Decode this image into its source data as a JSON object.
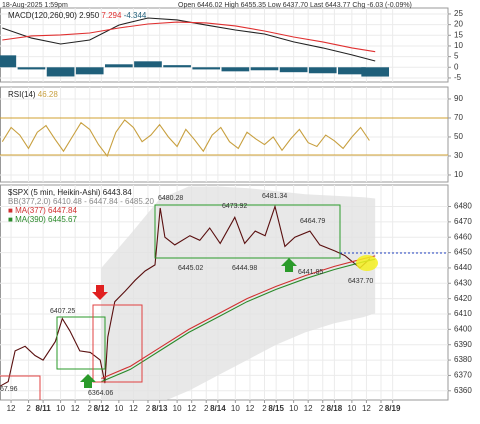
{
  "header": {
    "date": "18-Aug-2025 1:59pm",
    "quote": "Open 6446.02 High 6455.35 Low 6437.70 Last 6443.77 Chg -6.03 (-0.09%)"
  },
  "chart_data": [
    {
      "type": "line",
      "title": "MACD(120,260,90)",
      "x": [
        -0.7,
        -0.2,
        0.3,
        0.8,
        1.3,
        1.8,
        2.3,
        2.8,
        3.3,
        3.8,
        4.3,
        4.8,
        5.3,
        5.7
      ],
      "series": [
        {
          "color": "#222222",
          "legend_label": "2.950",
          "values": [
            18.4,
            13.7,
            10.9,
            12.8,
            19.8,
            23.1,
            22.2,
            19.8,
            17.5,
            15.6,
            11.9,
            9.1,
            5.8,
            2.95
          ]
        },
        {
          "color": "#e03030",
          "legend_label": "7.294",
          "values": [
            12.8,
            14.7,
            15.2,
            16.1,
            18.4,
            20.3,
            21.2,
            20.8,
            19.4,
            17,
            14.2,
            11.9,
            9.1,
            7.294
          ]
        },
        {
          "type": "bar",
          "color": "#1f5f7a",
          "legend_label": "-4.344",
          "values": [
            5.6,
            -1,
            -4.3,
            -3.3,
            1.4,
            2.8,
            1,
            -1,
            -1.9,
            -1.4,
            -2.3,
            -2.8,
            -3.3,
            -4.344
          ]
        }
      ],
      "ylim": [
        -6.9,
        27.8
      ],
      "yticks": [
        -5,
        0,
        5,
        10,
        15,
        20,
        25
      ]
    },
    {
      "type": "line",
      "title": "RSI(14)",
      "x": [
        -0.7,
        -0.55,
        -0.4,
        -0.25,
        -0.1,
        0.05,
        0.2,
        0.35,
        0.5,
        0.65,
        0.8,
        0.95,
        1.1,
        1.25,
        1.4,
        1.55,
        1.7,
        1.85,
        2,
        2.15,
        2.3,
        2.45,
        2.6,
        2.75,
        2.9,
        3.05,
        3.2,
        3.35,
        3.5,
        3.65,
        3.8,
        3.95,
        4.1,
        4.25,
        4.4,
        4.55,
        4.7,
        4.85,
        5,
        5.15,
        5.3,
        5.45,
        5.6
      ],
      "series": [
        {
          "color": "#c8a040",
          "legend_label": "46.28",
          "values": [
            45,
            60,
            52,
            38,
            55,
            62,
            48,
            35,
            50,
            65,
            58,
            42,
            30,
            55,
            68,
            60,
            45,
            52,
            63,
            50,
            40,
            58,
            47,
            35,
            52,
            60,
            45,
            38,
            55,
            48,
            42,
            50,
            36,
            48,
            58,
            44,
            40,
            52,
            46,
            38,
            50,
            60,
            46.28
          ]
        }
      ],
      "ylim": [
        2.6,
        102.6
      ],
      "yticks": [
        10,
        30,
        50,
        70,
        90
      ]
    },
    {
      "type": "line",
      "title": "$SPX (5 min, Heikin-Ashi)",
      "band": {
        "name": "BB(377,2.0)",
        "legend_label": "6410.48 - 6447.84 - 6485.20",
        "color": "#e2e2e2",
        "x": [
          1.0,
          1.5,
          2.0,
          2.5,
          3.0,
          3.5,
          4.0,
          4.5,
          5.0,
          5.5,
          5.7
        ],
        "upper": [
          6440,
          6462,
          6485,
          6493,
          6493,
          6492,
          6490,
          6488,
          6487,
          6486,
          6485.2
        ],
        "lower": [
          6340,
          6345,
          6352,
          6360,
          6370,
          6380,
          6390,
          6398,
          6404,
          6408,
          6410.48
        ]
      },
      "series": [
        {
          "name": "$SPX (5 min, Heikin-Ashi)",
          "legend_label": "6443.84",
          "color": "#5a1010",
          "x": [
            -0.74,
            -0.6,
            -0.48,
            -0.31,
            -0.14,
            0,
            0.21,
            0.33,
            0.46,
            0.63,
            0.81,
            0.98,
            1.06,
            1.11,
            1.23,
            1.41,
            1.58,
            1.75,
            1.92,
            2.01,
            2.09,
            2.26,
            2.52,
            2.69,
            2.86,
            3.04,
            3.29,
            3.46,
            3.64,
            3.81,
            3.98,
            4.15,
            4.32,
            4.58,
            4.75,
            5.01,
            5.18,
            5.44,
            5.61
          ],
          "values": [
            6363,
            6366,
            6386,
            6389,
            6383,
            6380,
            6392,
            6407,
            6399,
            6386,
            6385,
            6380,
            6365,
            6395,
            6418,
            6425,
            6432,
            6438,
            6442,
            6479,
            6460,
            6455,
            6461,
            6458,
            6466,
            6456,
            6473,
            6456,
            6464,
            6461,
            6480,
            6454,
            6460,
            6464,
            6455,
            6451,
            6448,
            6440,
            6446
          ]
        },
        {
          "name": "MA(377)",
          "legend_label": "6447.84",
          "color": "#d03030",
          "x": [
            1.0,
            1.5,
            2.0,
            2.5,
            3.0,
            3.5,
            4.0,
            4.5,
            5.0,
            5.5,
            5.7
          ],
          "values": [
            6368,
            6376,
            6388,
            6400,
            6410,
            6420,
            6428,
            6435,
            6441,
            6446,
            6447.84
          ]
        },
        {
          "name": "MA(390)",
          "legend_label": "6445.67",
          "color": "#2a8a2a",
          "x": [
            1.0,
            1.5,
            2.0,
            2.5,
            3.0,
            3.5,
            4.0,
            4.5,
            5.0,
            5.5,
            5.7
          ],
          "values": [
            6366,
            6374,
            6386,
            6398,
            6408,
            6418,
            6426,
            6433,
            6439,
            6444,
            6445.67
          ]
        }
      ],
      "annotations": [
        "6480.28",
        "6473.92",
        "6481.34",
        "6464.79",
        "6445.02",
        "6444.98",
        "6441.85",
        "6437.70",
        "6407.25",
        "6364.06",
        "67.96"
      ],
      "xlim": [
        -0.74,
        6.95
      ],
      "xticks": [
        {
          "value": -0.55,
          "label": "12"
        },
        {
          "value": -0.25,
          "label": "2"
        },
        {
          "value": 0,
          "label": "8/11"
        },
        {
          "value": 0.3,
          "label": "10"
        },
        {
          "value": 0.55,
          "label": "12"
        },
        {
          "value": 0.8,
          "label": "2"
        },
        {
          "value": 1,
          "label": "8/12"
        },
        {
          "value": 1.3,
          "label": "10"
        },
        {
          "value": 1.55,
          "label": "12"
        },
        {
          "value": 1.8,
          "label": "2"
        },
        {
          "value": 2,
          "label": "8/13"
        },
        {
          "value": 2.3,
          "label": "10"
        },
        {
          "value": 2.55,
          "label": "12"
        },
        {
          "value": 2.8,
          "label": "2"
        },
        {
          "value": 3,
          "label": "8/14"
        },
        {
          "value": 3.3,
          "label": "10"
        },
        {
          "value": 3.55,
          "label": "12"
        },
        {
          "value": 3.8,
          "label": "2"
        },
        {
          "value": 4,
          "label": "8/15"
        },
        {
          "value": 4.3,
          "label": "10"
        },
        {
          "value": 4.55,
          "label": "12"
        },
        {
          "value": 4.8,
          "label": "2"
        },
        {
          "value": 5,
          "label": "8/18"
        },
        {
          "value": 5.3,
          "label": "10"
        },
        {
          "value": 5.55,
          "label": "12"
        },
        {
          "value": 5.8,
          "label": "2"
        },
        {
          "value": 6,
          "label": "8/19"
        }
      ],
      "ylim": [
        6354,
        6494
      ],
      "yticks": [
        6360,
        6370,
        6380,
        6390,
        6400,
        6410,
        6420,
        6430,
        6440,
        6450,
        6460,
        6470,
        6480
      ]
    }
  ]
}
